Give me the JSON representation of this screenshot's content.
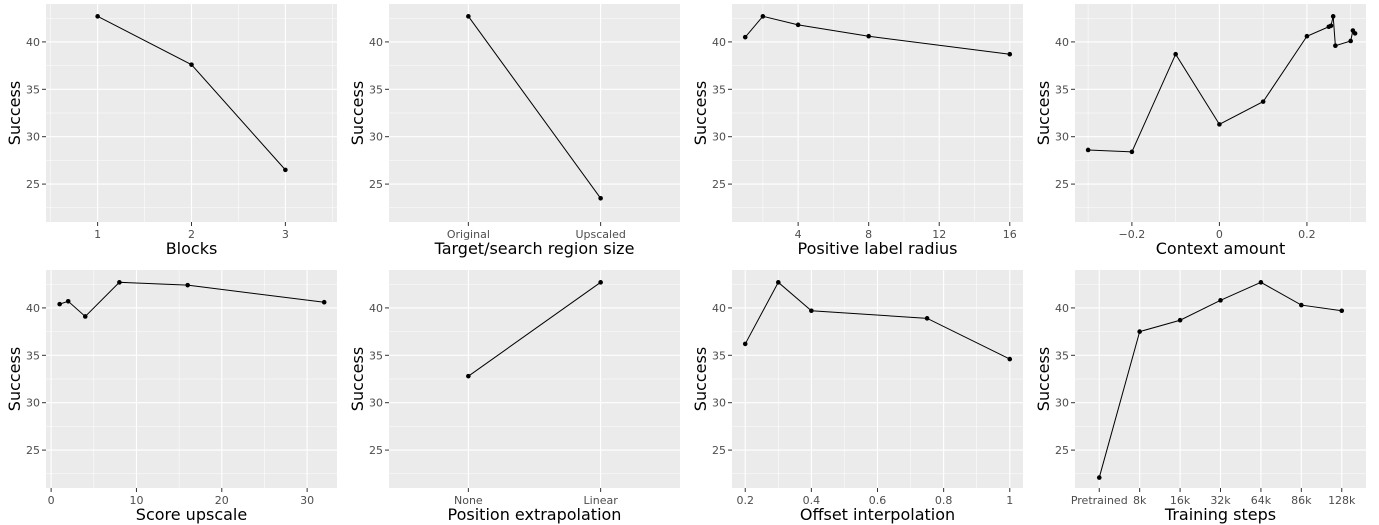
{
  "chart_data": [
    {
      "type": "line",
      "xlabel": "Blocks",
      "ylabel": "Success",
      "x_scale": "linear",
      "xlim": [
        0.45,
        3.55
      ],
      "ylim": [
        21,
        44
      ],
      "x_ticks": [
        1,
        2,
        3
      ],
      "x_tick_labels": [
        "1",
        "2",
        "3"
      ],
      "y_ticks": [
        25,
        30,
        35,
        40
      ],
      "y_tick_labels": [
        "25",
        "30",
        "35",
        "40"
      ],
      "grid": true,
      "x": [
        1,
        2,
        3
      ],
      "y": [
        42.7,
        37.6,
        26.5
      ]
    },
    {
      "type": "line",
      "xlabel": "Target/search region size",
      "ylabel": "Success",
      "x_scale": "categorical",
      "xlim": [
        0.4,
        2.6
      ],
      "ylim": [
        21,
        44
      ],
      "x_ticks": [
        1,
        2
      ],
      "x_tick_labels": [
        "Original",
        "Upscaled"
      ],
      "y_ticks": [
        25,
        30,
        35,
        40
      ],
      "y_tick_labels": [
        "25",
        "30",
        "35",
        "40"
      ],
      "grid": true,
      "categories": [
        "Original",
        "Upscaled"
      ],
      "x": [
        1,
        2
      ],
      "y": [
        42.7,
        23.5
      ]
    },
    {
      "type": "line",
      "xlabel": "Positive label radius",
      "ylabel": "Success",
      "x_scale": "linear",
      "xlim": [
        0.25,
        16.75
      ],
      "ylim": [
        21,
        44
      ],
      "x_ticks": [
        4,
        8,
        12,
        16
      ],
      "x_tick_labels": [
        "4",
        "8",
        "12",
        "16"
      ],
      "y_ticks": [
        25,
        30,
        35,
        40
      ],
      "y_tick_labels": [
        "25",
        "30",
        "35",
        "40"
      ],
      "grid": true,
      "x": [
        1,
        2,
        4,
        8,
        16
      ],
      "y": [
        40.5,
        42.7,
        41.8,
        40.6,
        38.7
      ]
    },
    {
      "type": "line",
      "xlabel": "Context amount",
      "ylabel": "Success",
      "x_scale": "linear",
      "xlim": [
        -0.33,
        0.335
      ],
      "ylim": [
        21,
        44
      ],
      "x_ticks": [
        -0.2,
        0,
        0.2
      ],
      "x_tick_labels": [
        "−0.2",
        "0",
        "0.2"
      ],
      "y_ticks": [
        25,
        30,
        35,
        40
      ],
      "y_tick_labels": [
        "25",
        "30",
        "35",
        "40"
      ],
      "grid": true,
      "x": [
        -0.3,
        -0.2,
        -0.1,
        0,
        0.1,
        0.2,
        0.25,
        0.255,
        0.26,
        0.265,
        0.3,
        0.305,
        0.31
      ],
      "y": [
        28.6,
        28.4,
        38.7,
        31.3,
        33.7,
        40.6,
        41.6,
        41.7,
        42.7,
        39.6,
        40.1,
        41.2,
        40.9
      ]
    },
    {
      "type": "line",
      "xlabel": "Score upscale",
      "ylabel": "Success",
      "x_scale": "linear",
      "xlim": [
        -0.6,
        33.5
      ],
      "ylim": [
        21,
        44
      ],
      "x_ticks": [
        0,
        10,
        20,
        30
      ],
      "x_tick_labels": [
        "0",
        "10",
        "20",
        "30"
      ],
      "y_ticks": [
        25,
        30,
        35,
        40
      ],
      "y_tick_labels": [
        "25",
        "30",
        "35",
        "40"
      ],
      "grid": true,
      "x": [
        1,
        2,
        4,
        8,
        16,
        32
      ],
      "y": [
        40.4,
        40.7,
        39.1,
        42.7,
        42.4,
        40.6
      ]
    },
    {
      "type": "line",
      "xlabel": "Position extrapolation",
      "ylabel": "Success",
      "x_scale": "categorical",
      "xlim": [
        0.4,
        2.6
      ],
      "ylim": [
        21,
        44
      ],
      "x_ticks": [
        1,
        2
      ],
      "x_tick_labels": [
        "None",
        "Linear"
      ],
      "y_ticks": [
        25,
        30,
        35,
        40
      ],
      "y_tick_labels": [
        "25",
        "30",
        "35",
        "40"
      ],
      "grid": true,
      "categories": [
        "None",
        "Linear"
      ],
      "x": [
        1,
        2
      ],
      "y": [
        32.8,
        42.7
      ]
    },
    {
      "type": "line",
      "xlabel": "Offset interpolation",
      "ylabel": "Success",
      "x_scale": "linear",
      "xlim": [
        0.16,
        1.04
      ],
      "ylim": [
        21,
        44
      ],
      "x_ticks": [
        0.2,
        0.4,
        0.6,
        0.8,
        1.0
      ],
      "x_tick_labels": [
        "0.2",
        "0.4",
        "0.6",
        "0.8",
        "1"
      ],
      "y_ticks": [
        25,
        30,
        35,
        40
      ],
      "y_tick_labels": [
        "25",
        "30",
        "35",
        "40"
      ],
      "grid": true,
      "x": [
        0.2,
        0.3,
        0.4,
        0.75,
        1.0
      ],
      "y": [
        36.2,
        42.7,
        39.7,
        38.9,
        34.6
      ]
    },
    {
      "type": "line",
      "xlabel": "Training steps",
      "ylabel": "Success",
      "x_scale": "categorical",
      "xlim": [
        0.4,
        7.6
      ],
      "ylim": [
        21,
        44
      ],
      "x_ticks": [
        1,
        2,
        3,
        4,
        5,
        6,
        7
      ],
      "x_tick_labels": [
        "Pretrained",
        "8k",
        "16k",
        "32k",
        "64k",
        "86k",
        "128k"
      ],
      "y_ticks": [
        25,
        30,
        35,
        40
      ],
      "y_tick_labels": [
        "25",
        "30",
        "35",
        "40"
      ],
      "grid": true,
      "categories": [
        "Pretrained",
        "8k",
        "16k",
        "32k",
        "64k",
        "86k",
        "128k"
      ],
      "x": [
        1,
        2,
        3,
        4,
        5,
        6,
        7
      ],
      "y": [
        22.1,
        37.5,
        38.7,
        40.8,
        42.7,
        40.3,
        39.7
      ]
    }
  ]
}
